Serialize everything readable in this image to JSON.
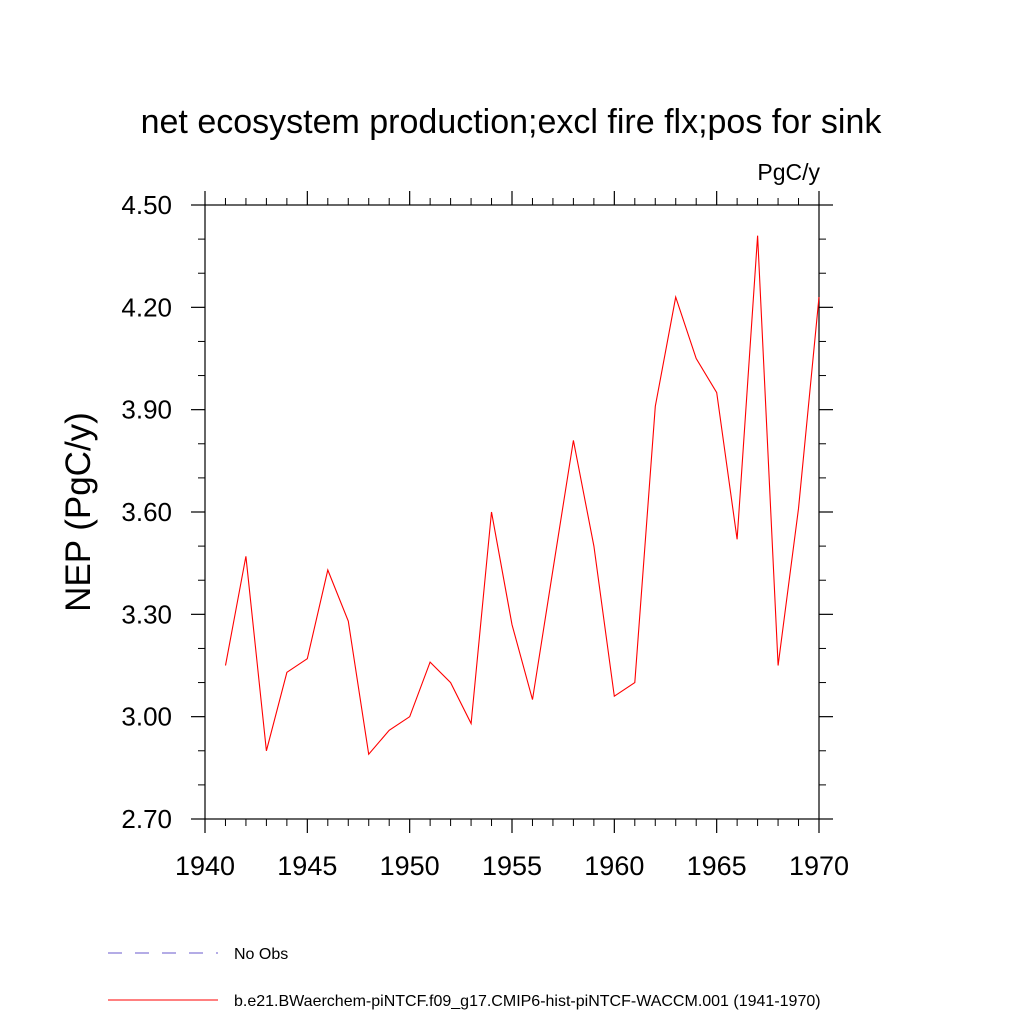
{
  "chart_data": {
    "type": "line",
    "title": "net ecosystem production;excl fire flx;pos for sink",
    "units": "PgC/y",
    "ylabel": "NEP  (PgC/y)",
    "xlabel": "",
    "xlim": [
      1940,
      1970
    ],
    "ylim": [
      2.7,
      4.5
    ],
    "x_ticks": [
      "1940",
      "1945",
      "1950",
      "1955",
      "1960",
      "1965",
      "1970"
    ],
    "x_tick_values": [
      1940,
      1945,
      1950,
      1955,
      1960,
      1965,
      1970
    ],
    "y_ticks": [
      "2.70",
      "3.00",
      "3.30",
      "3.60",
      "3.90",
      "4.20",
      "4.50"
    ],
    "y_tick_values": [
      2.7,
      3.0,
      3.3,
      3.6,
      3.9,
      4.2,
      4.5
    ],
    "grid": false,
    "legend_placement": "bottom-left",
    "series": [
      {
        "name": "b.e21.BWaerchem-piNTCF.f09_g17.CMIP6-hist-piNTCF-WACCM.001 (1941-1970)",
        "color": "#ff0000",
        "dash": "solid",
        "x": [
          1941,
          1942,
          1943,
          1944,
          1945,
          1946,
          1947,
          1948,
          1949,
          1950,
          1951,
          1952,
          1953,
          1954,
          1955,
          1956,
          1957,
          1958,
          1959,
          1960,
          1961,
          1962,
          1963,
          1964,
          1965,
          1966,
          1967,
          1968,
          1969,
          1970
        ],
        "y": [
          3.15,
          3.47,
          2.9,
          3.13,
          3.17,
          3.43,
          3.28,
          2.89,
          2.96,
          3.0,
          3.16,
          3.1,
          2.98,
          3.6,
          3.27,
          3.05,
          3.43,
          3.81,
          3.5,
          3.06,
          3.1,
          3.91,
          4.23,
          4.05,
          3.95,
          3.52,
          4.41,
          3.15,
          3.61,
          4.23
        ]
      }
    ],
    "legend": [
      {
        "label": "No Obs",
        "color": "#6a5acd",
        "dash": "dashed"
      },
      {
        "label": "b.e21.BWaerchem-piNTCF.f09_g17.CMIP6-hist-piNTCF-WACCM.001 (1941-1970)",
        "color": "#ff0000",
        "dash": "solid"
      }
    ]
  }
}
